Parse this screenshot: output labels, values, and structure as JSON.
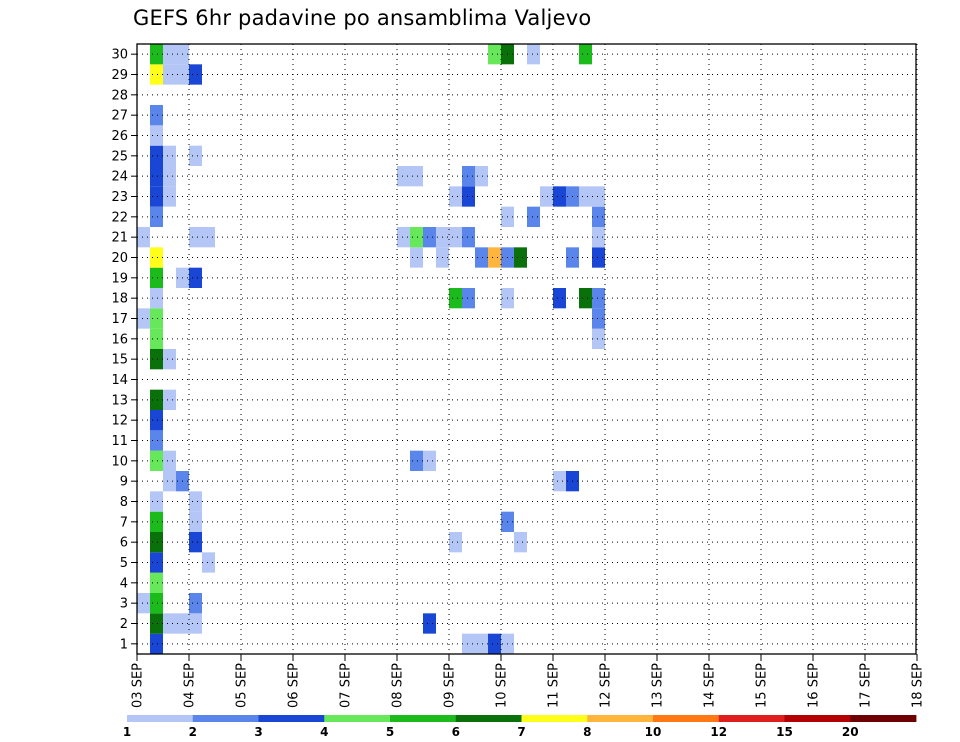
{
  "chart_data": {
    "type": "heatmap",
    "title": "GEFS 6hr padavine po ansamblima Valjevo",
    "xlabel": "",
    "ylabel": "",
    "x_tick_labels": [
      "03 SEP",
      "04 SEP",
      "05 SEP",
      "06 SEP",
      "07 SEP",
      "08 SEP",
      "09 SEP",
      "10 SEP",
      "11 SEP",
      "12 SEP",
      "13 SEP",
      "14 SEP",
      "15 SEP",
      "16 SEP",
      "17 SEP",
      "18 SEP"
    ],
    "y_tick_labels": [
      "1",
      "2",
      "3",
      "4",
      "5",
      "6",
      "7",
      "8",
      "9",
      "10",
      "11",
      "12",
      "13",
      "14",
      "15",
      "16",
      "17",
      "18",
      "19",
      "20",
      "21",
      "22",
      "23",
      "24",
      "25",
      "26",
      "27",
      "28",
      "29",
      "30"
    ],
    "time_step_hours": 6,
    "members": 30,
    "grid": true,
    "legend": {
      "placement": "bottom",
      "labels": [
        "1",
        "2",
        "3",
        "4",
        "5",
        "6",
        "7",
        "8",
        "10",
        "12",
        "15",
        "20"
      ],
      "colors": [
        "#b3c6f5",
        "#5a86eb",
        "#1a46d6",
        "#66e85a",
        "#1cbb1c",
        "#0a700a",
        "#ffff1a",
        "#ffb43c",
        "#ff7814",
        "#e01e1e",
        "#b40000",
        "#6e0000"
      ]
    },
    "cells": [
      {
        "member": 1,
        "step": 2,
        "value": 3.5
      },
      {
        "member": 1,
        "step": 26,
        "value": 1.5
      },
      {
        "member": 1,
        "step": 27,
        "value": 1.5
      },
      {
        "member": 1,
        "step": 28,
        "value": 3.5
      },
      {
        "member": 1,
        "step": 29,
        "value": 1.5
      },
      {
        "member": 2,
        "step": 2,
        "value": 6.5
      },
      {
        "member": 2,
        "step": 3,
        "value": 1.5
      },
      {
        "member": 2,
        "step": 4,
        "value": 1.5
      },
      {
        "member": 2,
        "step": 5,
        "value": 1.5
      },
      {
        "member": 2,
        "step": 23,
        "value": 3.5
      },
      {
        "member": 3,
        "step": 1,
        "value": 1.5
      },
      {
        "member": 3,
        "step": 2,
        "value": 5.5
      },
      {
        "member": 3,
        "step": 5,
        "value": 2.5
      },
      {
        "member": 4,
        "step": 2,
        "value": 4.5
      },
      {
        "member": 5,
        "step": 2,
        "value": 3.5
      },
      {
        "member": 5,
        "step": 6,
        "value": 1.5
      },
      {
        "member": 6,
        "step": 2,
        "value": 6.5
      },
      {
        "member": 6,
        "step": 5,
        "value": 3.5
      },
      {
        "member": 6,
        "step": 25,
        "value": 1.5
      },
      {
        "member": 6,
        "step": 30,
        "value": 1.5
      },
      {
        "member": 7,
        "step": 2,
        "value": 5.5
      },
      {
        "member": 7,
        "step": 5,
        "value": 1.5
      },
      {
        "member": 7,
        "step": 29,
        "value": 2.5
      },
      {
        "member": 8,
        "step": 2,
        "value": 1.5
      },
      {
        "member": 8,
        "step": 5,
        "value": 1.5
      },
      {
        "member": 9,
        "step": 3,
        "value": 1.5
      },
      {
        "member": 9,
        "step": 4,
        "value": 2.5
      },
      {
        "member": 9,
        "step": 33,
        "value": 1.5
      },
      {
        "member": 9,
        "step": 34,
        "value": 3.5
      },
      {
        "member": 10,
        "step": 2,
        "value": 4.5
      },
      {
        "member": 10,
        "step": 3,
        "value": 1.5
      },
      {
        "member": 10,
        "step": 22,
        "value": 2.5
      },
      {
        "member": 10,
        "step": 23,
        "value": 1.5
      },
      {
        "member": 11,
        "step": 2,
        "value": 2.5
      },
      {
        "member": 12,
        "step": 2,
        "value": 3.5
      },
      {
        "member": 13,
        "step": 2,
        "value": 6.5
      },
      {
        "member": 13,
        "step": 3,
        "value": 1.5
      },
      {
        "member": 15,
        "step": 2,
        "value": 6.5
      },
      {
        "member": 15,
        "step": 3,
        "value": 1.5
      },
      {
        "member": 16,
        "step": 2,
        "value": 4.5
      },
      {
        "member": 16,
        "step": 36,
        "value": 1.5
      },
      {
        "member": 17,
        "step": 1,
        "value": 1.5
      },
      {
        "member": 17,
        "step": 2,
        "value": 4.5
      },
      {
        "member": 17,
        "step": 36,
        "value": 2.5
      },
      {
        "member": 18,
        "step": 2,
        "value": 1.5
      },
      {
        "member": 18,
        "step": 25,
        "value": 5.5
      },
      {
        "member": 18,
        "step": 26,
        "value": 2.5
      },
      {
        "member": 18,
        "step": 29,
        "value": 1.5
      },
      {
        "member": 18,
        "step": 33,
        "value": 3.5
      },
      {
        "member": 18,
        "step": 35,
        "value": 6.5
      },
      {
        "member": 18,
        "step": 36,
        "value": 2.5
      },
      {
        "member": 19,
        "step": 2,
        "value": 5.5
      },
      {
        "member": 19,
        "step": 4,
        "value": 1.5
      },
      {
        "member": 19,
        "step": 5,
        "value": 3.5
      },
      {
        "member": 20,
        "step": 2,
        "value": 7.5
      },
      {
        "member": 20,
        "step": 22,
        "value": 1.5
      },
      {
        "member": 20,
        "step": 24,
        "value": 1.5
      },
      {
        "member": 20,
        "step": 27,
        "value": 2.5
      },
      {
        "member": 20,
        "step": 28,
        "value": 9
      },
      {
        "member": 20,
        "step": 29,
        "value": 2.5
      },
      {
        "member": 20,
        "step": 30,
        "value": 6.5
      },
      {
        "member": 20,
        "step": 34,
        "value": 2.5
      },
      {
        "member": 20,
        "step": 36,
        "value": 3.5
      },
      {
        "member": 21,
        "step": 1,
        "value": 1.5
      },
      {
        "member": 21,
        "step": 5,
        "value": 1.5
      },
      {
        "member": 21,
        "step": 6,
        "value": 1.5
      },
      {
        "member": 21,
        "step": 21,
        "value": 1.5
      },
      {
        "member": 21,
        "step": 22,
        "value": 4.5
      },
      {
        "member": 21,
        "step": 23,
        "value": 2.5
      },
      {
        "member": 21,
        "step": 24,
        "value": 1.5
      },
      {
        "member": 21,
        "step": 25,
        "value": 1.5
      },
      {
        "member": 21,
        "step": 26,
        "value": 2.5
      },
      {
        "member": 21,
        "step": 36,
        "value": 1.5
      },
      {
        "member": 22,
        "step": 2,
        "value": 2.5
      },
      {
        "member": 22,
        "step": 29,
        "value": 1.5
      },
      {
        "member": 22,
        "step": 31,
        "value": 2.5
      },
      {
        "member": 22,
        "step": 36,
        "value": 2.5
      },
      {
        "member": 23,
        "step": 2,
        "value": 3.5
      },
      {
        "member": 23,
        "step": 3,
        "value": 1.5
      },
      {
        "member": 23,
        "step": 25,
        "value": 1.5
      },
      {
        "member": 23,
        "step": 26,
        "value": 3.5
      },
      {
        "member": 23,
        "step": 32,
        "value": 1.5
      },
      {
        "member": 23,
        "step": 33,
        "value": 3.5
      },
      {
        "member": 23,
        "step": 34,
        "value": 2.5
      },
      {
        "member": 23,
        "step": 35,
        "value": 1.5
      },
      {
        "member": 23,
        "step": 36,
        "value": 1.5
      },
      {
        "member": 24,
        "step": 2,
        "value": 3.5
      },
      {
        "member": 24,
        "step": 3,
        "value": 1.5
      },
      {
        "member": 24,
        "step": 21,
        "value": 1.5
      },
      {
        "member": 24,
        "step": 22,
        "value": 1.5
      },
      {
        "member": 24,
        "step": 26,
        "value": 2.5
      },
      {
        "member": 24,
        "step": 27,
        "value": 1.5
      },
      {
        "member": 25,
        "step": 2,
        "value": 3.5
      },
      {
        "member": 25,
        "step": 3,
        "value": 1.5
      },
      {
        "member": 25,
        "step": 5,
        "value": 1.5
      },
      {
        "member": 26,
        "step": 2,
        "value": 1.5
      },
      {
        "member": 27,
        "step": 2,
        "value": 2.5
      },
      {
        "member": 29,
        "step": 2,
        "value": 7.5
      },
      {
        "member": 29,
        "step": 3,
        "value": 1.5
      },
      {
        "member": 29,
        "step": 4,
        "value": 1.5
      },
      {
        "member": 29,
        "step": 5,
        "value": 3.5
      },
      {
        "member": 30,
        "step": 2,
        "value": 5.5
      },
      {
        "member": 30,
        "step": 3,
        "value": 1.5
      },
      {
        "member": 30,
        "step": 4,
        "value": 1.5
      },
      {
        "member": 30,
        "step": 28,
        "value": 4.5
      },
      {
        "member": 30,
        "step": 29,
        "value": 6.5
      },
      {
        "member": 30,
        "step": 31,
        "value": 1.5
      },
      {
        "member": 30,
        "step": 35,
        "value": 5.5
      }
    ]
  }
}
